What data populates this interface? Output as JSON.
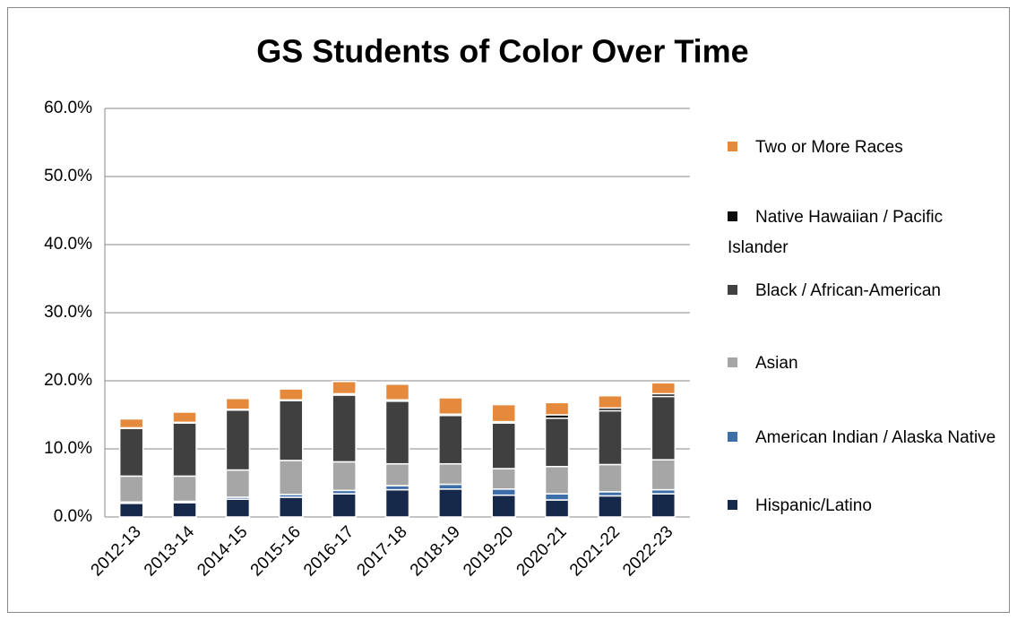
{
  "chart_data": {
    "type": "stacked_bar",
    "title": "GS Students of Color Over Time",
    "categories": [
      "2012-13",
      "2013-14",
      "2014-15",
      "2015-16",
      "2016-17",
      "2017-18",
      "2018-19",
      "2019-20",
      "2020-21",
      "2021-22",
      "2022-23"
    ],
    "series": [
      {
        "name": "Hispanic/Latino",
        "color": "#17294a",
        "values": [
          2.0,
          2.1,
          2.6,
          2.9,
          3.4,
          4.0,
          4.1,
          3.2,
          2.5,
          3.1,
          3.4
        ]
      },
      {
        "name": "American Indian / Alaska Native",
        "color": "#3d6ea8",
        "values": [
          0.2,
          0.2,
          0.3,
          0.4,
          0.5,
          0.6,
          0.7,
          0.9,
          0.9,
          0.6,
          0.6
        ]
      },
      {
        "name": "Asian",
        "color": "#a6a6a6",
        "values": [
          3.8,
          3.7,
          4.0,
          5.0,
          4.2,
          3.2,
          3.0,
          3.0,
          4.0,
          4.0,
          4.4
        ]
      },
      {
        "name": "Black / African-American",
        "color": "#404040",
        "values": [
          7.0,
          7.8,
          8.8,
          8.8,
          9.8,
          9.2,
          7.1,
          6.7,
          7.1,
          7.9,
          9.3
        ]
      },
      {
        "name": "Native Hawaiian / Pacific Islander",
        "color": "#0d0d0d",
        "values": [
          0.1,
          0.1,
          0.1,
          0.1,
          0.2,
          0.2,
          0.2,
          0.2,
          0.5,
          0.4,
          0.4
        ]
      },
      {
        "name": "Two or More Races",
        "color": "#e58a3c",
        "values": [
          1.3,
          1.5,
          1.6,
          1.6,
          1.8,
          2.3,
          2.4,
          2.5,
          1.8,
          1.8,
          1.6
        ]
      }
    ],
    "ylim": [
      0,
      60
    ],
    "yticks": [
      {
        "value": 0,
        "label": "0.0%"
      },
      {
        "value": 10,
        "label": "10.0%"
      },
      {
        "value": 20,
        "label": "20.0%"
      },
      {
        "value": 30,
        "label": "30.0%"
      },
      {
        "value": 40,
        "label": "40.0%"
      },
      {
        "value": 50,
        "label": "50.0%"
      },
      {
        "value": 60,
        "label": "60.0%"
      }
    ],
    "grid": true
  }
}
